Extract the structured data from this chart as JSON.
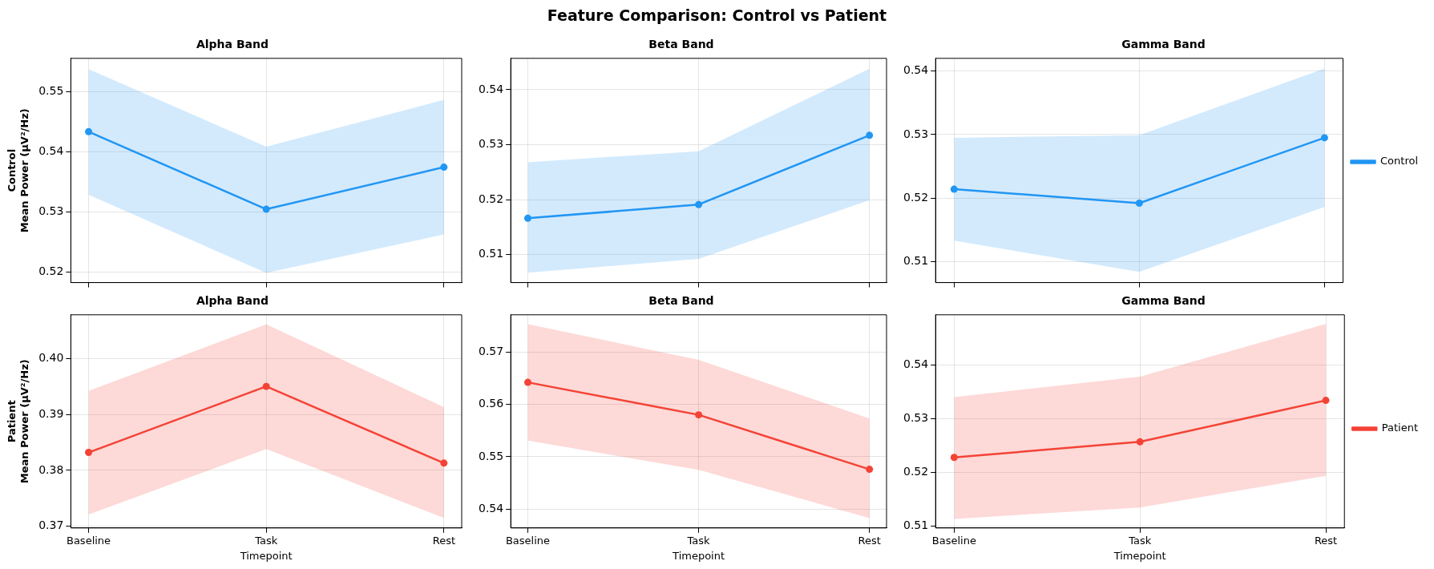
{
  "chart_data": [
    {
      "type": "other",
      "title": "Feature Comparison: Control vs Patient"
    },
    {
      "type": "line",
      "title": "Alpha Band",
      "ylabel": "Control\nMean Power (µV²/Hz)",
      "categories": [
        null,
        null,
        null
      ],
      "ylim": [
        0.5182,
        0.5555
      ],
      "yticks": [
        0.52,
        0.53,
        0.54,
        0.55
      ],
      "tick_labels": "y",
      "grid": true,
      "marker": "circle",
      "line_style": "solid",
      "series": [
        {
          "color": "#2196f3",
          "values": [
            0.5433,
            0.5304,
            0.5374
          ],
          "lower": [
            0.5328,
            0.5198,
            0.5262
          ],
          "upper": [
            0.5537,
            0.5408,
            0.5486
          ]
        }
      ]
    },
    {
      "type": "line",
      "title": "Beta Band",
      "categories": [
        null,
        null,
        null
      ],
      "ylim": [
        0.5049,
        0.5457
      ],
      "yticks": [
        0.51,
        0.52,
        0.53,
        0.54
      ],
      "tick_labels": "y",
      "grid": true,
      "marker": "circle",
      "line_style": "solid",
      "series": [
        {
          "color": "#2196f3",
          "values": [
            0.5166,
            0.5191,
            0.5317
          ],
          "lower": [
            0.5067,
            0.5092,
            0.5199
          ],
          "upper": [
            0.5268,
            0.5288,
            0.5438
          ]
        }
      ]
    },
    {
      "type": "line",
      "title": "Gamma Band",
      "categories": [
        null,
        null,
        null
      ],
      "ylim": [
        0.5067,
        0.542
      ],
      "yticks": [
        0.51,
        0.52,
        0.53,
        0.54
      ],
      "tick_labels": "y",
      "grid": true,
      "marker": "circle",
      "line_style": "solid",
      "legend": "right",
      "series": [
        {
          "name": "Control",
          "color": "#2196f3",
          "values": [
            0.5214,
            0.5192,
            0.5295
          ],
          "lower": [
            0.5133,
            0.5084,
            0.5186
          ],
          "upper": [
            0.5295,
            0.5299,
            0.5404
          ]
        }
      ]
    },
    {
      "type": "line",
      "title": "Alpha Band",
      "ylabel": "Patient\nMean Power (µV²/Hz)",
      "xlabel": "Timepoint",
      "categories": [
        "Baseline",
        "Task",
        "Rest"
      ],
      "ylim": [
        0.3697,
        0.4078
      ],
      "yticks": [
        {
          "value": 0.37,
          "label": "0.37"
        },
        {
          "value": 0.38,
          "label": "0.38"
        },
        {
          "value": 0.39,
          "label": "0.39"
        },
        {
          "value": 0.4,
          "label": "0.40"
        }
      ],
      "grid": true,
      "marker": "circle",
      "line_style": "solid",
      "series": [
        {
          "color": "#f44336",
          "values": [
            0.3832,
            0.395,
            0.3813
          ],
          "lower": [
            0.3721,
            0.3838,
            0.3715
          ],
          "upper": [
            0.3942,
            0.4061,
            0.3913
          ]
        }
      ]
    },
    {
      "type": "line",
      "title": "Beta Band",
      "xlabel": "Timepoint",
      "categories": [
        "Baseline",
        "Task",
        "Rest"
      ],
      "ylim": [
        0.5364,
        0.5771
      ],
      "yticks": [
        0.54,
        0.55,
        0.56,
        0.57
      ],
      "grid": true,
      "marker": "circle",
      "line_style": "solid",
      "series": [
        {
          "color": "#f44336",
          "values": [
            0.5642,
            0.558,
            0.5476
          ],
          "lower": [
            0.5531,
            0.5475,
            0.5383
          ],
          "upper": [
            0.5753,
            0.5685,
            0.5573
          ]
        }
      ]
    },
    {
      "type": "line",
      "title": "Gamma Band",
      "xlabel": "Timepoint",
      "categories": [
        "Baseline",
        "Task",
        "Rest"
      ],
      "ylim": [
        0.5097,
        0.5493
      ],
      "yticks": [
        0.51,
        0.52,
        0.53,
        0.54
      ],
      "grid": true,
      "marker": "circle",
      "line_style": "solid",
      "legend": "right",
      "series": [
        {
          "name": "Patient",
          "color": "#f44336",
          "values": [
            0.5228,
            0.5257,
            0.5334
          ],
          "lower": [
            0.5114,
            0.5135,
            0.5194
          ],
          "upper": [
            0.534,
            0.5378,
            0.5476
          ]
        }
      ]
    }
  ]
}
